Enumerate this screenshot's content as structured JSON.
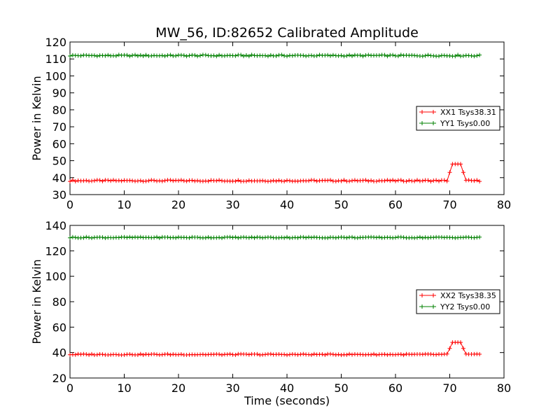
{
  "title": "MW_56, ID:82652 Calibrated Amplitude",
  "colors": {
    "xx": "#ff0000",
    "yy": "#008000"
  },
  "chart_data": [
    {
      "type": "line",
      "ylabel": "Power in Kelvin",
      "xlabel": "",
      "xlim": [
        0,
        80
      ],
      "ylim": [
        30,
        120
      ],
      "xticks": [
        "0",
        "10",
        "20",
        "30",
        "40",
        "50",
        "60",
        "70",
        "80"
      ],
      "yticks": [
        "30",
        "40",
        "50",
        "60",
        "70",
        "80",
        "90",
        "100",
        "110",
        "120"
      ],
      "legend_position": "center-right",
      "series": [
        {
          "name": "XX1 Tsys38.31",
          "color": "#ff0000",
          "marker": "+",
          "x_start": 0.0,
          "x_end": 75.5,
          "baseline": 38.2,
          "bump": {
            "x_rise_start": 69.5,
            "x_top_start": 70.5,
            "x_top_end": 72.0,
            "x_fall_end": 73.0,
            "peak": 48
          }
        },
        {
          "name": "YY1 Tsys0.00",
          "color": "#008000",
          "marker": "+",
          "x_start": 0.0,
          "x_end": 75.5,
          "baseline": 112.0
        }
      ]
    },
    {
      "type": "line",
      "ylabel": "Power in Kelvin",
      "xlabel": "Time (seconds)",
      "xlim": [
        0,
        80
      ],
      "ylim": [
        20,
        140
      ],
      "xticks": [
        "0",
        "10",
        "20",
        "30",
        "40",
        "50",
        "60",
        "70",
        "80"
      ],
      "yticks": [
        "20",
        "40",
        "60",
        "80",
        "100",
        "120",
        "140"
      ],
      "legend_position": "center-right",
      "series": [
        {
          "name": "XX2 Tsys38.35",
          "color": "#ff0000",
          "marker": "+",
          "x_start": 0.0,
          "x_end": 75.5,
          "baseline": 38.5,
          "bump": {
            "x_rise_start": 69.5,
            "x_top_start": 70.5,
            "x_top_end": 72.0,
            "x_fall_end": 73.0,
            "peak": 48
          }
        },
        {
          "name": "YY2 Tsys0.00",
          "color": "#008000",
          "marker": "+",
          "x_start": 0.0,
          "x_end": 75.5,
          "baseline": 130.5
        }
      ]
    }
  ]
}
